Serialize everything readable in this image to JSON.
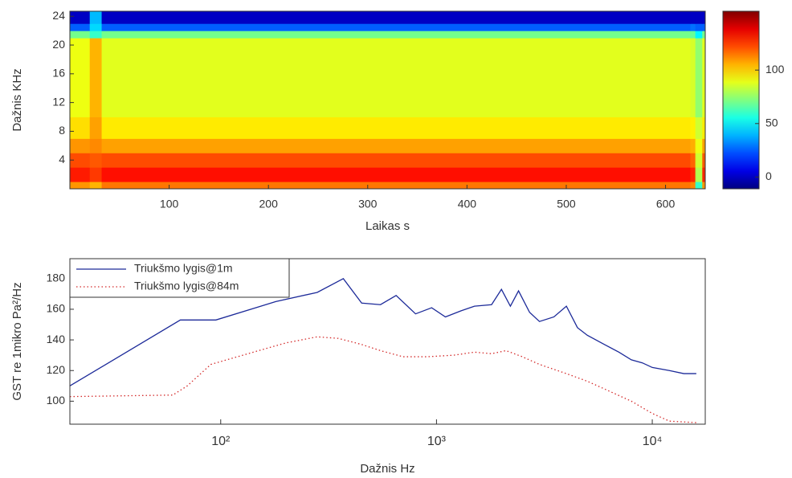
{
  "chart_data": [
    {
      "type": "heatmap",
      "x_label": "Laikas s",
      "y_label": "Dažnis KHz",
      "xlim": [
        0,
        640
      ],
      "xticks": [
        100,
        200,
        300,
        400,
        500,
        600
      ],
      "ylim": [
        0,
        24.7
      ],
      "yticks": [
        4,
        8,
        12,
        16,
        20,
        24
      ],
      "x_edges": [
        0,
        20,
        32,
        625,
        630,
        637,
        640
      ],
      "y_edges": [
        0,
        1,
        3,
        5,
        7,
        10,
        21,
        22,
        23,
        24.7
      ],
      "values": [
        [
          110,
          105,
          115,
          112,
          60,
          110
        ],
        [
          130,
          125,
          132,
          128,
          80,
          128
        ],
        [
          122,
          120,
          122,
          118,
          85,
          120
        ],
        [
          110,
          112,
          108,
          106,
          90,
          108
        ],
        [
          98,
          108,
          96,
          95,
          85,
          96
        ],
        [
          90,
          105,
          88,
          86,
          75,
          88
        ],
        [
          70,
          60,
          70,
          68,
          50,
          70
        ],
        [
          25,
          45,
          25,
          28,
          25,
          25
        ],
        [
          0,
          40,
          0,
          0,
          0,
          0
        ]
      ],
      "colormap": "jet",
      "clim": [
        -11,
        155
      ],
      "cticks": [
        0,
        50,
        100
      ]
    },
    {
      "type": "line",
      "x_label": "Dažnis Hz",
      "y_label": "GST re 1mikro Pa²/Hz",
      "x_scale": "log",
      "xlim": [
        20,
        17600
      ],
      "xticks": [
        {
          "value": 100,
          "label": "10²"
        },
        {
          "value": 1000,
          "label": "10³"
        },
        {
          "value": 10000,
          "label": "10⁴"
        }
      ],
      "ylim": [
        85,
        193
      ],
      "yticks": [
        100,
        120,
        140,
        160,
        180
      ],
      "legend": "upper left",
      "series": [
        {
          "name": "Triukšmo lygis@1m",
          "color": "#1c2a99",
          "style": "solid",
          "x": [
            20,
            65,
            95,
            180,
            280,
            370,
            450,
            550,
            650,
            800,
            950,
            1100,
            1300,
            1500,
            1800,
            2000,
            2200,
            2400,
            2700,
            3000,
            3500,
            4000,
            4500,
            5000,
            6000,
            7000,
            8000,
            9000,
            10000,
            12000,
            14000,
            16000
          ],
          "values": [
            110,
            153,
            153,
            165,
            171,
            180,
            164,
            163,
            169,
            157,
            161,
            155,
            159,
            162,
            163,
            173,
            162,
            172,
            158,
            152,
            155,
            162,
            148,
            143,
            137,
            132,
            127,
            125,
            122,
            120,
            118,
            118
          ]
        },
        {
          "name": "Triukšmo lygis@84m",
          "color": "#d42a2a",
          "style": "dotted",
          "x": [
            20,
            60,
            70,
            90,
            150,
            200,
            280,
            350,
            450,
            550,
            700,
            900,
            1200,
            1500,
            1800,
            2100,
            2500,
            3000,
            4000,
            5000,
            6000,
            8000,
            10000,
            12000,
            16000
          ],
          "values": [
            103,
            104,
            110,
            124,
            133,
            138,
            142,
            141,
            137,
            133,
            129,
            129,
            130,
            132,
            131,
            133,
            129,
            124,
            118,
            113,
            108,
            100,
            92,
            87,
            86
          ]
        }
      ]
    }
  ]
}
